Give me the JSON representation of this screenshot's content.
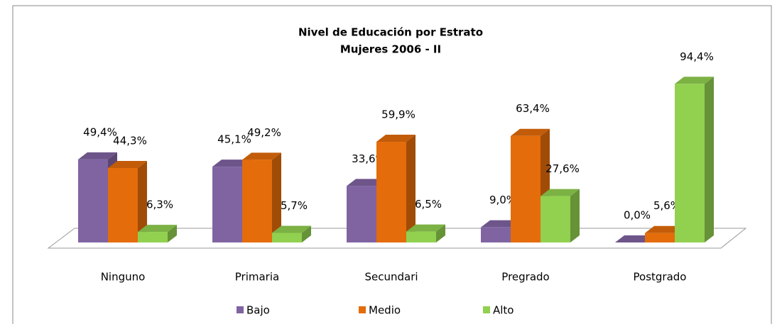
{
  "chart_data": {
    "type": "bar3d",
    "title": "Nivel de Educación por Estrato",
    "subtitle": "Mujeres 2006 - II",
    "categories": [
      "Ninguno",
      "Primaria",
      "Secundari",
      "Pregrado",
      "Postgrado"
    ],
    "series": [
      {
        "name": "Bajo",
        "color": "#8064a2",
        "values": [
          49.4,
          45.1,
          33.6,
          9.0,
          0.0
        ],
        "value_labels": [
          "49,4%",
          "45,1%",
          "33,6%",
          "9,0%",
          "0,0%"
        ]
      },
      {
        "name": "Medio",
        "color": "#e46c0a",
        "values": [
          44.3,
          49.2,
          59.9,
          63.4,
          5.6
        ],
        "value_labels": [
          "44,3%",
          "49,2%",
          "59,9%",
          "63,4%",
          "5,6%"
        ]
      },
      {
        "name": "Alto",
        "color": "#92d050",
        "values": [
          6.3,
          5.7,
          6.5,
          27.6,
          94.4
        ],
        "value_labels": [
          "6,3%",
          "5,7%",
          "6,5%",
          "27,6%",
          "94,4%"
        ]
      }
    ],
    "legend": "bottom"
  }
}
